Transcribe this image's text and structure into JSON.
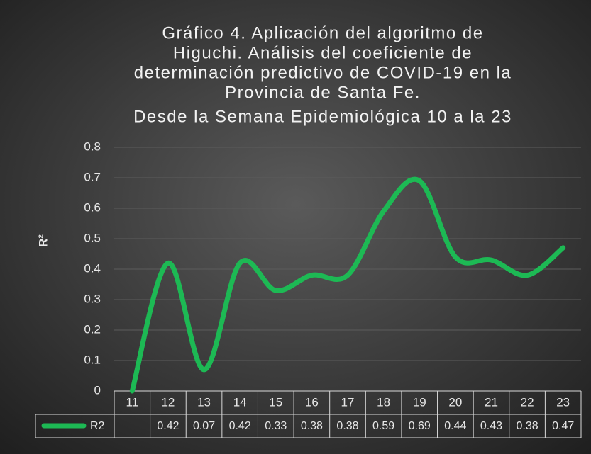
{
  "chart_data": {
    "type": "line",
    "title": [
      "Gráfico 4. Aplicación del algoritmo de",
      "Higuchi. Análisis del coeficiente de",
      "determinación predictivo de COVID-19 en la",
      "Provincia de Santa Fe.",
      "Desde la Semana Epidemiológica 10 a la 23"
    ],
    "y_label": "R²",
    "categories": [
      "11",
      "12",
      "13",
      "14",
      "15",
      "16",
      "17",
      "18",
      "19",
      "20",
      "21",
      "22",
      "23"
    ],
    "series": [
      {
        "name": "R2",
        "color": "#1db954",
        "values": [
          0,
          0.42,
          0.07,
          0.42,
          0.33,
          0.38,
          0.38,
          0.59,
          0.69,
          0.44,
          0.43,
          0.38,
          0.47
        ],
        "value_labels": [
          null,
          "0.42",
          "0.07",
          "0.42",
          "0.33",
          "0.38",
          "0.38",
          "0.59",
          "0.69",
          "0.44",
          "0.43",
          "0.38",
          "0.47"
        ]
      }
    ],
    "ylim": [
      0,
      0.8
    ],
    "yticks": [
      0,
      0.1,
      0.2,
      0.3,
      0.4,
      0.5,
      0.6,
      0.7,
      0.8
    ],
    "grid": true,
    "data_table": true
  }
}
